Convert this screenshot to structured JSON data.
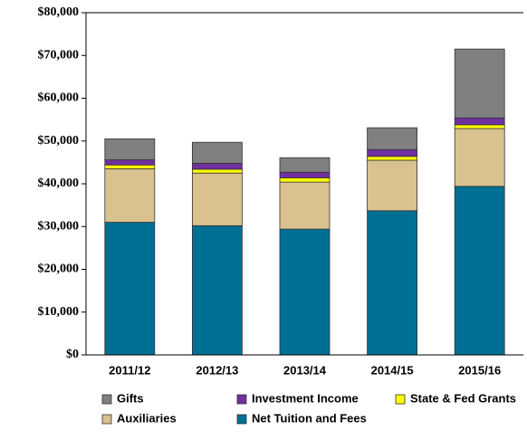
{
  "chart_data": {
    "type": "stacked_bar",
    "categories": [
      "2011/12",
      "2012/13",
      "2013/14",
      "2014/15",
      "2015/16"
    ],
    "series": [
      {
        "name": "Gifts",
        "color": "#808080",
        "values": [
          4900,
          4900,
          3400,
          5100,
          16100
        ]
      },
      {
        "name": "Investment Income",
        "color": "#7030a0",
        "values": [
          1200,
          1400,
          1300,
          1600,
          1600
        ]
      },
      {
        "name": "State & Fed Grants",
        "color": "#ffff00",
        "values": [
          900,
          900,
          1000,
          900,
          900
        ]
      },
      {
        "name": "Auxiliaries",
        "color": "#d9c190",
        "values": [
          12500,
          12300,
          11000,
          11800,
          13500
        ]
      },
      {
        "name": "Net Tuition and Fees",
        "color": "#006f94",
        "values": [
          31000,
          30200,
          29400,
          33700,
          39400
        ]
      }
    ],
    "ylim": [
      0,
      80000
    ],
    "yticks": [
      {
        "value": 0,
        "label": "$0"
      },
      {
        "value": 10000,
        "label": "$10,000"
      },
      {
        "value": 20000,
        "label": "$20,000"
      },
      {
        "value": 30000,
        "label": "$30,000"
      },
      {
        "value": 40000,
        "label": "$40,000"
      },
      {
        "value": 50000,
        "label": "$50,000"
      },
      {
        "value": 60000,
        "label": "$60,000"
      },
      {
        "value": 70000,
        "label": "$70,000"
      },
      {
        "value": 80000,
        "label": "$80,000"
      }
    ]
  }
}
